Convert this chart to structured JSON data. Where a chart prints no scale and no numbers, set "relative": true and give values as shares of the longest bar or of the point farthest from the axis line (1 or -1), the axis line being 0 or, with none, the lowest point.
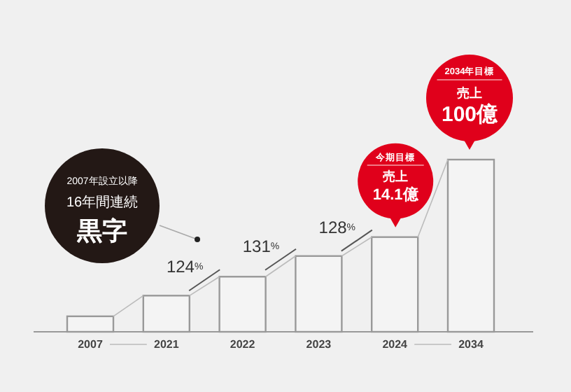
{
  "chart_data": {
    "type": "bar",
    "relative": true,
    "categories": [
      "2007",
      "2021",
      "2022",
      "2023",
      "2024",
      "2034"
    ],
    "values": [
      0.09,
      0.21,
      0.32,
      0.44,
      0.55,
      1
    ],
    "color": "#f4f4f4",
    "annotations": [
      "2007年設立以降",
      "16年間連続",
      "黒字",
      "124%",
      "131%",
      "128%",
      "今期目標",
      "売上",
      {
        "text": "14.1億",
        "x": "2024",
        "y": 0.55
      },
      "2034年目標",
      "売上",
      {
        "text": "100億",
        "x": "2034",
        "y": 1
      }
    ]
  }
}
